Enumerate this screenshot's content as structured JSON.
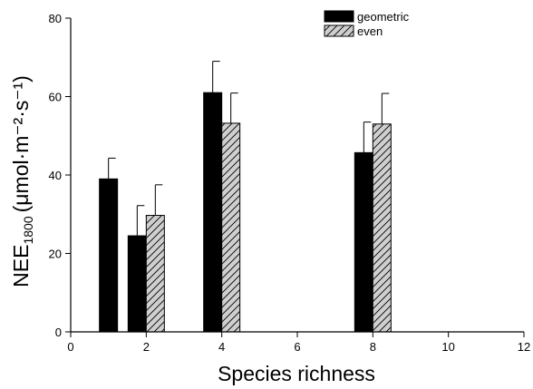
{
  "chart_data": {
    "type": "bar",
    "xlabel": "Species richness",
    "ylabel_main": "NEE",
    "ylabel_sub": "1800",
    "ylabel_units": "(μmol·m⁻²·s⁻¹)",
    "xlim": [
      0,
      12
    ],
    "ylim": [
      0,
      80
    ],
    "xticks": [
      0,
      2,
      4,
      6,
      8,
      10,
      12
    ],
    "yticks": [
      0,
      20,
      40,
      60,
      80
    ],
    "grid": false,
    "legend_position": "top-right",
    "series": [
      {
        "name": "geometric",
        "color": "#000000",
        "pattern": "solid",
        "x": [
          1,
          2,
          4,
          8
        ],
        "values": [
          39,
          24.5,
          61,
          45.7
        ],
        "errors": [
          5.3,
          7.7,
          8,
          7.8
        ]
      },
      {
        "name": "even",
        "color": "#bfbfbf",
        "pattern": "hatched",
        "x": [
          2,
          4,
          8
        ],
        "values": [
          29.7,
          53.2,
          53
        ],
        "errors": [
          7.8,
          7.7,
          7.8
        ]
      }
    ]
  }
}
